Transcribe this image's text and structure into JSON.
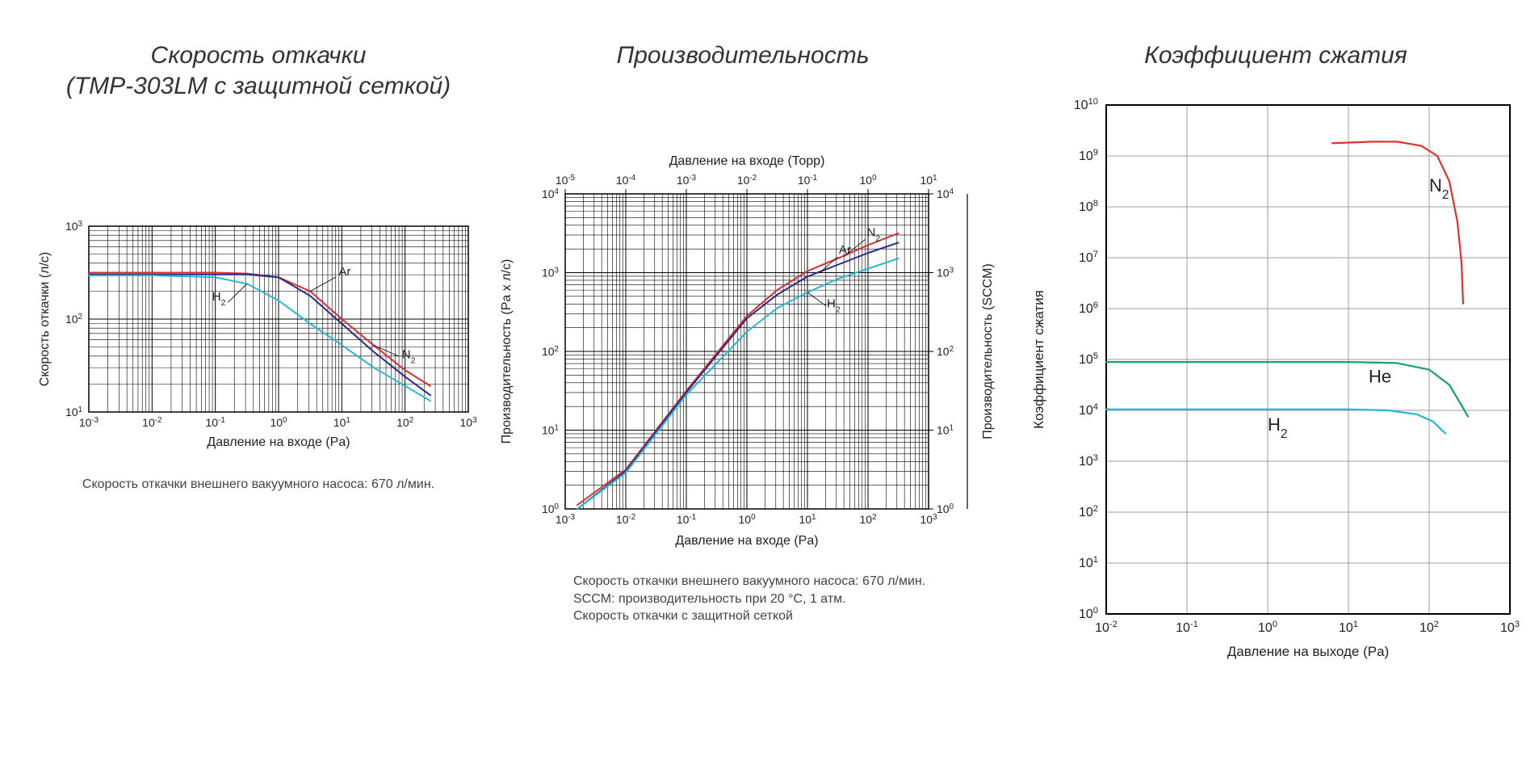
{
  "panel1": {
    "title": "Скорость откачки\n(TMP-303LM с защитной сеткой)",
    "type": "line-loglog",
    "xlabel": "Давление на входе (Pa)",
    "ylabel": "Скорость откачки (л/с)",
    "caption": "Скорость откачки внешнего вакуумного насоса: 670 л/мин.",
    "x_exp_min": -3,
    "x_exp_max": 3,
    "y_exp_min": 1,
    "y_exp_max": 3,
    "background_color": "#ffffff",
    "grid_color": "#000000",
    "frame_width": 1.5,
    "grid_width": 1.0,
    "line_width": 2.0,
    "label_fontsize": 16,
    "tick_fontsize": 14,
    "series": [
      {
        "name": "N2",
        "label": "N₂",
        "color": "#d62f2f",
        "points": [
          [
            -3,
            2.5
          ],
          [
            -2,
            2.5
          ],
          [
            -1,
            2.5
          ],
          [
            -0.5,
            2.49
          ],
          [
            0,
            2.45
          ],
          [
            0.5,
            2.3
          ],
          [
            1,
            2.0
          ],
          [
            1.5,
            1.72
          ],
          [
            2,
            1.45
          ],
          [
            2.4,
            1.28
          ]
        ]
      },
      {
        "name": "Ar",
        "label": "Ar",
        "color": "#2a2a8a",
        "points": [
          [
            -3,
            2.48
          ],
          [
            -2,
            2.48
          ],
          [
            -1,
            2.48
          ],
          [
            -0.5,
            2.48
          ],
          [
            0,
            2.45
          ],
          [
            0.5,
            2.25
          ],
          [
            1,
            1.95
          ],
          [
            1.5,
            1.65
          ],
          [
            2,
            1.38
          ],
          [
            2.4,
            1.18
          ]
        ]
      },
      {
        "name": "H2",
        "label": "H₂",
        "color": "#25b7d3",
        "points": [
          [
            -3,
            2.47
          ],
          [
            -2,
            2.47
          ],
          [
            -1,
            2.45
          ],
          [
            -0.5,
            2.38
          ],
          [
            0,
            2.2
          ],
          [
            0.5,
            1.95
          ],
          [
            1,
            1.72
          ],
          [
            1.5,
            1.48
          ],
          [
            2,
            1.28
          ],
          [
            2.4,
            1.12
          ]
        ]
      }
    ],
    "series_label_positions": {
      "Ar": [
        0.9,
        2.3
      ],
      "N2": [
        1.7,
        1.7
      ],
      "H2": [
        -0.7,
        2.26
      ]
    }
  },
  "panel2": {
    "title": "Производительность",
    "type": "line-loglog",
    "xlabel_bottom": "Давление на входе (Pa)",
    "xlabel_top": "Давление на входе (Торр)",
    "ylabel_left": "Производительность (Pa x л/с)",
    "ylabel_right": "Производительность (SCCM)",
    "caption_lines": [
      "Скорость откачки внешнего вакуумного насоса: 670 л/мин.",
      "SCCM: производительность при 20 °C, 1 атм.",
      "Скорость откачки с защитной сеткой"
    ],
    "xb_exp_min": -3,
    "xb_exp_max": 3,
    "xt_exp_min": -5,
    "xt_exp_max": 1,
    "yl_exp_min": 0,
    "yl_exp_max": 4,
    "yr_exp_min": 0,
    "yr_exp_max": 4,
    "background_color": "#ffffff",
    "grid_color": "#000000",
    "frame_width": 1.5,
    "grid_width": 1.0,
    "line_width": 2.0,
    "label_fontsize": 16,
    "tick_fontsize": 14,
    "series": [
      {
        "name": "N2",
        "label": "N₂",
        "color": "#d62f2f",
        "points": [
          [
            -2.8,
            0.05
          ],
          [
            -2,
            0.5
          ],
          [
            -1,
            1.5
          ],
          [
            0,
            2.45
          ],
          [
            0.5,
            2.78
          ],
          [
            1,
            3.02
          ],
          [
            1.5,
            3.18
          ],
          [
            2,
            3.35
          ],
          [
            2.5,
            3.5
          ]
        ]
      },
      {
        "name": "Ar",
        "label": "Ar",
        "color": "#2a2a8a",
        "points": [
          [
            -2.8,
            0.0
          ],
          [
            -2,
            0.48
          ],
          [
            -1,
            1.48
          ],
          [
            0,
            2.42
          ],
          [
            0.5,
            2.72
          ],
          [
            1,
            2.95
          ],
          [
            1.5,
            3.1
          ],
          [
            2,
            3.25
          ],
          [
            2.5,
            3.38
          ]
        ]
      },
      {
        "name": "H2",
        "label": "H₂",
        "color": "#25b7d3",
        "points": [
          [
            -2.8,
            0.0
          ],
          [
            -2,
            0.46
          ],
          [
            -1,
            1.45
          ],
          [
            0,
            2.25
          ],
          [
            0.5,
            2.55
          ],
          [
            1,
            2.75
          ],
          [
            1.5,
            2.92
          ],
          [
            2,
            3.05
          ],
          [
            2.5,
            3.18
          ]
        ]
      }
    ],
    "series_label_positions": {
      "N2": [
        1.75,
        3.28
      ],
      "Ar": [
        1.35,
        3.05
      ],
      "H2": [
        1.15,
        2.65
      ]
    }
  },
  "panel3": {
    "title": "Коэффициент сжатия",
    "type": "line-loglog",
    "xlabel": "Давление на выходе (Pa)",
    "ylabel": "Коэффициент сжатия",
    "x_exp_min": -2,
    "x_exp_max": 3,
    "y_exp_min": 0,
    "y_exp_max": 10,
    "background_color": "#ffffff",
    "border_color": "#000000",
    "grid_color": "#9c9c9c",
    "frame_width": 2.0,
    "grid_width": 1.0,
    "line_width": 2.2,
    "label_fontsize": 16,
    "tick_fontsize": 14,
    "series": [
      {
        "name": "N2",
        "label": "N₂",
        "color": "#e3312e",
        "points": [
          [
            0.8,
            9.25
          ],
          [
            1.3,
            9.28
          ],
          [
            1.6,
            9.28
          ],
          [
            1.9,
            9.2
          ],
          [
            2.1,
            9.0
          ],
          [
            2.25,
            8.5
          ],
          [
            2.35,
            7.7
          ],
          [
            2.4,
            6.9
          ],
          [
            2.42,
            6.1
          ]
        ]
      },
      {
        "name": "He",
        "label": "He",
        "color": "#15a36a",
        "points": [
          [
            -2,
            4.95
          ],
          [
            -1,
            4.95
          ],
          [
            0,
            4.95
          ],
          [
            1,
            4.95
          ],
          [
            1.6,
            4.93
          ],
          [
            2.0,
            4.8
          ],
          [
            2.25,
            4.5
          ],
          [
            2.4,
            4.1
          ],
          [
            2.48,
            3.88
          ]
        ]
      },
      {
        "name": "H2",
        "label": "H₂",
        "color": "#25b7d3",
        "points": [
          [
            -2,
            4.02
          ],
          [
            -1,
            4.02
          ],
          [
            0,
            4.02
          ],
          [
            1,
            4.02
          ],
          [
            1.5,
            4.0
          ],
          [
            1.85,
            3.92
          ],
          [
            2.05,
            3.78
          ],
          [
            2.15,
            3.62
          ],
          [
            2.2,
            3.55
          ]
        ]
      }
    ],
    "series_label_positions": {
      "N2": [
        2.0,
        8.3
      ],
      "He": [
        1.25,
        4.55
      ],
      "H2": [
        0.0,
        3.6
      ]
    }
  }
}
